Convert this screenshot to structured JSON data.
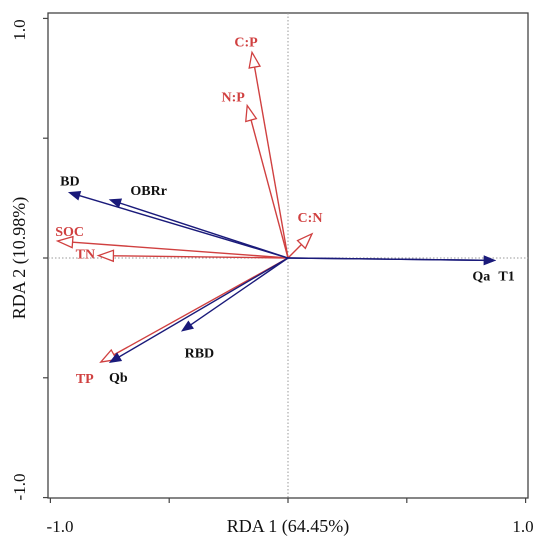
{
  "chart_data": {
    "type": "scatter",
    "subtype": "rda-biplot",
    "xlabel": "RDA 1 (64.45%)",
    "ylabel": "RDA 2 (10.98%)",
    "xlim": [
      -1.0,
      1.0
    ],
    "ylim": [
      -1.0,
      1.0
    ],
    "x_tick_labels": [
      "-1.0",
      "1.0"
    ],
    "y_tick_labels": [
      "1.0",
      "-1.0"
    ],
    "reference_lines": "dotted lines at x=0 and y=0",
    "grid": false,
    "colors": {
      "response": "#d04040",
      "explanatory": "#1a1a7a"
    },
    "series": [
      {
        "group": "response",
        "arrow_style": "open-head",
        "vectors": [
          {
            "label": "C:P",
            "x": -0.15,
            "y": 0.85
          },
          {
            "label": "N:P",
            "x": -0.17,
            "y": 0.63
          },
          {
            "label": "C:N",
            "x": 0.1,
            "y": 0.1
          },
          {
            "label": "SOC",
            "x": -0.96,
            "y": 0.07
          },
          {
            "label": "TN",
            "x": -0.79,
            "y": 0.01
          },
          {
            "label": "TP",
            "x": -0.78,
            "y": -0.43
          }
        ]
      },
      {
        "group": "explanatory",
        "arrow_style": "filled-head",
        "vectors": [
          {
            "label": "BD",
            "x": -0.91,
            "y": 0.27
          },
          {
            "label": "OBRr",
            "x": -0.74,
            "y": 0.24
          },
          {
            "label": "Qa",
            "x": 0.86,
            "y": -0.01
          },
          {
            "label": "T1",
            "x": 0.86,
            "y": -0.01
          },
          {
            "label": "RBD",
            "x": -0.44,
            "y": -0.3
          },
          {
            "label": "Qb",
            "x": -0.74,
            "y": -0.43
          }
        ]
      }
    ]
  }
}
